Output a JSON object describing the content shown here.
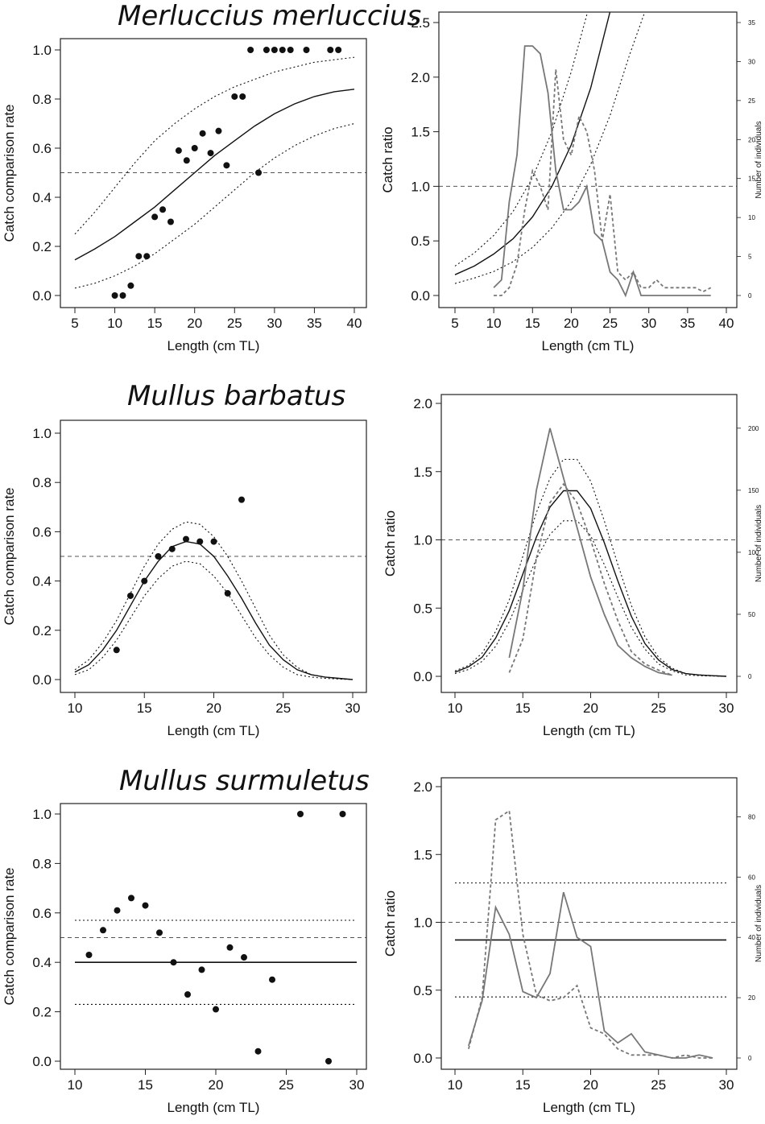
{
  "chart_data": [
    {
      "panel": "merluccius-rate",
      "type": "scatter",
      "title": "Merluccius merluccius",
      "xlabel": "Length (cm TL)",
      "ylabel": "Catch comparison rate",
      "xlim": [
        5,
        40
      ],
      "ylim": [
        0,
        1
      ],
      "xticks": [
        "5",
        "10",
        "15",
        "20",
        "25",
        "30",
        "35",
        "40"
      ],
      "yticks": [
        "0.0",
        "0.2",
        "0.4",
        "0.6",
        "0.8",
        "1.0"
      ],
      "reference_line": 0.5,
      "points": [
        [
          10,
          0
        ],
        [
          11,
          0
        ],
        [
          12,
          0.04
        ],
        [
          13,
          0.16
        ],
        [
          14,
          0.16
        ],
        [
          15,
          0.32
        ],
        [
          16,
          0.35
        ],
        [
          17,
          0.3
        ],
        [
          18,
          0.59
        ],
        [
          19,
          0.55
        ],
        [
          20,
          0.6
        ],
        [
          21,
          0.66
        ],
        [
          22,
          0.58
        ],
        [
          23,
          0.67
        ],
        [
          24,
          0.53
        ],
        [
          25,
          0.81
        ],
        [
          26,
          0.81
        ],
        [
          27,
          1
        ],
        [
          28,
          0.5
        ],
        [
          29,
          1
        ],
        [
          30,
          1
        ],
        [
          31,
          1
        ],
        [
          32,
          1
        ],
        [
          34,
          1
        ],
        [
          37,
          1
        ],
        [
          38,
          1
        ]
      ],
      "fit": {
        "x": [
          5,
          7.5,
          10,
          12.5,
          15,
          17.5,
          20,
          22.5,
          25,
          27.5,
          30,
          32.5,
          35,
          37.5,
          40
        ],
        "y": [
          0.145,
          0.19,
          0.24,
          0.3,
          0.36,
          0.43,
          0.5,
          0.57,
          0.63,
          0.69,
          0.74,
          0.78,
          0.81,
          0.83,
          0.84
        ]
      },
      "ci_upper": {
        "x": [
          5,
          7.5,
          10,
          12.5,
          15,
          17.5,
          20,
          22.5,
          25,
          27.5,
          30,
          32.5,
          35,
          37.5,
          40
        ],
        "y": [
          0.25,
          0.34,
          0.44,
          0.54,
          0.63,
          0.7,
          0.76,
          0.81,
          0.85,
          0.88,
          0.91,
          0.93,
          0.95,
          0.96,
          0.97
        ]
      },
      "ci_lower": {
        "x": [
          5,
          7.5,
          10,
          12.5,
          15,
          17.5,
          20,
          22.5,
          25,
          27.5,
          30,
          32.5,
          35,
          37.5,
          40
        ],
        "y": [
          0.03,
          0.05,
          0.08,
          0.12,
          0.17,
          0.23,
          0.29,
          0.36,
          0.43,
          0.5,
          0.56,
          0.61,
          0.65,
          0.68,
          0.7
        ]
      }
    },
    {
      "panel": "merluccius-ratio",
      "type": "line",
      "xlabel": "Length (cm TL)",
      "ylabel": "Catch ratio",
      "y2label": "Number of individuals",
      "xlim": [
        5,
        40
      ],
      "ylim": [
        0,
        2.5
      ],
      "y2lim": [
        0,
        35
      ],
      "xticks": [
        "5",
        "10",
        "15",
        "20",
        "25",
        "30",
        "35",
        "40"
      ],
      "yticks": [
        "0.0",
        "0.5",
        "1.0",
        "1.5",
        "2.0",
        "2.5"
      ],
      "y2ticks": [
        "0",
        "5",
        "10",
        "15",
        "20",
        "25",
        "30",
        "35"
      ],
      "reference_line": 1.0,
      "fit": {
        "x": [
          5,
          7.5,
          10,
          12.5,
          15,
          17.5,
          20,
          22.5,
          25
        ],
        "y": [
          0.19,
          0.27,
          0.38,
          0.52,
          0.72,
          1.0,
          1.38,
          1.9,
          2.6
        ]
      },
      "ci_upper": {
        "x": [
          5,
          7.5,
          10,
          12.5,
          15,
          17.5,
          20,
          22.5
        ],
        "y": [
          0.27,
          0.39,
          0.55,
          0.77,
          1.08,
          1.5,
          2.05,
          2.7
        ]
      },
      "ci_lower": {
        "x": [
          5,
          7.5,
          10,
          12.5,
          15,
          17.5,
          20,
          22.5,
          25,
          27.5,
          30
        ],
        "y": [
          0.11,
          0.16,
          0.22,
          0.31,
          0.44,
          0.62,
          0.86,
          1.2,
          1.65,
          2.2,
          2.7
        ]
      },
      "series": [
        {
          "name": "",
          "style": "solid-grey",
          "x": [
            10,
            11,
            12,
            13,
            14,
            15,
            16,
            17,
            18,
            19,
            20,
            21,
            22,
            23,
            24,
            25,
            26,
            27,
            28,
            29,
            30,
            31,
            32,
            33,
            34,
            35,
            36,
            37,
            38
          ],
          "y": [
            1,
            2,
            12,
            18,
            32,
            32,
            31,
            26,
            16,
            11,
            11,
            12,
            14,
            8,
            7,
            3,
            2,
            0,
            3,
            0,
            0,
            0,
            0,
            0,
            0,
            0,
            0,
            0,
            0
          ]
        },
        {
          "name": "",
          "style": "dashed-grey",
          "x": [
            10,
            11,
            12,
            13,
            14,
            15,
            16,
            17,
            18,
            19,
            20,
            21,
            22,
            23,
            24,
            25,
            26,
            27,
            28,
            29,
            30,
            31,
            32,
            33,
            34,
            35,
            36,
            37,
            38
          ],
          "y": [
            0,
            0,
            1,
            4,
            11,
            16,
            14,
            11,
            29,
            20,
            18,
            23,
            21,
            16,
            7,
            13,
            3,
            2,
            3,
            1,
            1,
            2,
            1,
            1,
            1,
            1,
            1,
            0.5,
            1
          ]
        }
      ]
    },
    {
      "panel": "mullus-barbatus-rate",
      "type": "scatter",
      "title": "Mullus barbatus",
      "xlabel": "Length (cm TL)",
      "ylabel": "Catch comparison rate",
      "xlim": [
        10,
        30
      ],
      "ylim": [
        0,
        1
      ],
      "xticks": [
        "10",
        "15",
        "20",
        "25",
        "30"
      ],
      "yticks": [
        "0.0",
        "0.2",
        "0.4",
        "0.6",
        "0.8",
        "1.0"
      ],
      "reference_line": 0.5,
      "points": [
        [
          13,
          0.12
        ],
        [
          14,
          0.34
        ],
        [
          15,
          0.4
        ],
        [
          16,
          0.5
        ],
        [
          17,
          0.53
        ],
        [
          18,
          0.57
        ],
        [
          19,
          0.56
        ],
        [
          20,
          0.56
        ],
        [
          21,
          0.35
        ],
        [
          22,
          0.73
        ]
      ],
      "fit": {
        "x": [
          10,
          11,
          12,
          13,
          14,
          15,
          16,
          17,
          18,
          19,
          20,
          21,
          22,
          23,
          24,
          25,
          26,
          27,
          28,
          29,
          30
        ],
        "y": [
          0.03,
          0.06,
          0.12,
          0.2,
          0.3,
          0.4,
          0.48,
          0.54,
          0.56,
          0.55,
          0.5,
          0.42,
          0.33,
          0.23,
          0.14,
          0.08,
          0.04,
          0.02,
          0.01,
          0.005,
          0
        ]
      },
      "ci_upper": {
        "x": [
          10,
          11,
          12,
          13,
          14,
          15,
          16,
          17,
          18,
          19,
          20,
          21,
          22,
          23,
          24,
          25,
          26,
          27,
          28,
          29,
          30
        ],
        "y": [
          0.04,
          0.08,
          0.15,
          0.24,
          0.35,
          0.46,
          0.55,
          0.61,
          0.64,
          0.63,
          0.58,
          0.5,
          0.4,
          0.29,
          0.18,
          0.1,
          0.05,
          0.02,
          0.01,
          0.005,
          0
        ]
      },
      "ci_lower": {
        "x": [
          10,
          11,
          12,
          13,
          14,
          15,
          16,
          17,
          18,
          19,
          20,
          21,
          22,
          23,
          24,
          25,
          26,
          27,
          28,
          29,
          30
        ],
        "y": [
          0.02,
          0.04,
          0.09,
          0.16,
          0.25,
          0.34,
          0.41,
          0.46,
          0.48,
          0.47,
          0.42,
          0.35,
          0.26,
          0.17,
          0.1,
          0.05,
          0.02,
          0.01,
          0.005,
          0.002,
          0
        ]
      }
    },
    {
      "panel": "mullus-barbatus-ratio",
      "type": "line",
      "xlabel": "Length (cm TL)",
      "ylabel": "Catch ratio",
      "y2label": "Number of individuals",
      "xlim": [
        10,
        30
      ],
      "ylim": [
        0,
        2
      ],
      "y2lim": [
        0,
        220
      ],
      "xticks": [
        "10",
        "15",
        "20",
        "25",
        "30"
      ],
      "yticks": [
        "0.0",
        "0.5",
        "1.0",
        "1.5",
        "2.0"
      ],
      "y2ticks": [
        "0",
        "50",
        "100",
        "150",
        "200"
      ],
      "reference_line": 1.0,
      "fit": {
        "x": [
          10,
          11,
          12,
          13,
          14,
          15,
          16,
          17,
          18,
          19,
          20,
          21,
          22,
          23,
          24,
          25,
          26,
          27,
          28,
          29,
          30
        ],
        "y": [
          0.03,
          0.07,
          0.14,
          0.28,
          0.48,
          0.75,
          1.02,
          1.24,
          1.36,
          1.36,
          1.23,
          0.98,
          0.7,
          0.44,
          0.24,
          0.12,
          0.05,
          0.02,
          0.01,
          0.005,
          0
        ]
      },
      "ci_upper": {
        "x": [
          10,
          11,
          12,
          13,
          14,
          15,
          16,
          17,
          18,
          19,
          20,
          21,
          22,
          23,
          24,
          25,
          26,
          27,
          28,
          29,
          30
        ],
        "y": [
          0.04,
          0.08,
          0.17,
          0.33,
          0.56,
          0.88,
          1.2,
          1.45,
          1.59,
          1.59,
          1.43,
          1.14,
          0.82,
          0.52,
          0.29,
          0.14,
          0.06,
          0.02,
          0.01,
          0.005,
          0
        ]
      },
      "ci_lower": {
        "x": [
          10,
          11,
          12,
          13,
          14,
          15,
          16,
          17,
          18,
          19,
          20,
          21,
          22,
          23,
          24,
          25,
          26,
          27,
          28,
          29,
          30
        ],
        "y": [
          0.02,
          0.05,
          0.11,
          0.22,
          0.4,
          0.63,
          0.86,
          1.04,
          1.14,
          1.14,
          1.03,
          0.82,
          0.58,
          0.36,
          0.2,
          0.09,
          0.04,
          0.01,
          0.005,
          0.002,
          0
        ]
      },
      "series": [
        {
          "name": "",
          "style": "solid-grey",
          "x": [
            14,
            15,
            16,
            17,
            18,
            19,
            20,
            21,
            22,
            23,
            24,
            25,
            26
          ],
          "y": [
            15,
            70,
            150,
            200,
            160,
            120,
            80,
            50,
            25,
            15,
            8,
            3,
            1
          ]
        },
        {
          "name": "",
          "style": "dashed-grey",
          "x": [
            14,
            15,
            16,
            17,
            18,
            19,
            20,
            21,
            22,
            23,
            24,
            25,
            26
          ],
          "y": [
            3,
            30,
            95,
            140,
            155,
            140,
            110,
            75,
            45,
            20,
            10,
            5,
            1
          ]
        }
      ]
    },
    {
      "panel": "mullus-surmuletus-rate",
      "type": "scatter",
      "title": "Mullus surmuletus",
      "xlabel": "Length (cm TL)",
      "ylabel": "Catch comparison rate",
      "xlim": [
        10,
        30
      ],
      "ylim": [
        0,
        1
      ],
      "xticks": [
        "10",
        "15",
        "20",
        "25",
        "30"
      ],
      "yticks": [
        "0.0",
        "0.2",
        "0.4",
        "0.6",
        "0.8",
        "1.0"
      ],
      "reference_line": 0.5,
      "fit_constant": 0.4,
      "ci_upper_constant": 0.57,
      "ci_lower_constant": 0.23,
      "points": [
        [
          11,
          0.43
        ],
        [
          12,
          0.53
        ],
        [
          13,
          0.61
        ],
        [
          14,
          0.66
        ],
        [
          15,
          0.63
        ],
        [
          16,
          0.52
        ],
        [
          17,
          0.4
        ],
        [
          18,
          0.27
        ],
        [
          19,
          0.37
        ],
        [
          20,
          0.21
        ],
        [
          21,
          0.46
        ],
        [
          22,
          0.42
        ],
        [
          23,
          0.04
        ],
        [
          24,
          0.33
        ],
        [
          26,
          1
        ],
        [
          28,
          0
        ],
        [
          29,
          1
        ]
      ]
    },
    {
      "panel": "mullus-surmuletus-ratio",
      "type": "line",
      "xlabel": "Length (cm TL)",
      "ylabel": "Catch ratio",
      "y2label": "Number of individuals",
      "xlim": [
        10,
        30
      ],
      "ylim": [
        0,
        2
      ],
      "y2lim": [
        0,
        90
      ],
      "xticks": [
        "10",
        "15",
        "20",
        "25",
        "30"
      ],
      "yticks": [
        "0.0",
        "0.5",
        "1.0",
        "1.5",
        "2.0"
      ],
      "y2ticks": [
        "0",
        "20",
        "40",
        "60",
        "80"
      ],
      "reference_line": 1.0,
      "fit_constant": 0.87,
      "ci_upper_constant": 1.29,
      "ci_lower_constant": 0.45,
      "series": [
        {
          "name": "",
          "style": "solid-grey",
          "x": [
            11,
            12,
            13,
            14,
            15,
            16,
            17,
            18,
            19,
            20,
            21,
            22,
            23,
            24,
            25,
            26,
            27,
            28,
            29
          ],
          "y": [
            4,
            19,
            50,
            41,
            22,
            20,
            28,
            55,
            40,
            37,
            9,
            5,
            8,
            2,
            1,
            0,
            0,
            1,
            0
          ]
        },
        {
          "name": "",
          "style": "dashed-grey",
          "x": [
            11,
            12,
            13,
            14,
            15,
            16,
            17,
            18,
            19,
            20,
            21,
            22,
            23,
            24,
            25,
            26,
            27,
            28,
            29
          ],
          "y": [
            3,
            20,
            79,
            82,
            41,
            21,
            19,
            20,
            24,
            10,
            8,
            3,
            1,
            1,
            1,
            0,
            1,
            0,
            0
          ]
        }
      ]
    }
  ]
}
